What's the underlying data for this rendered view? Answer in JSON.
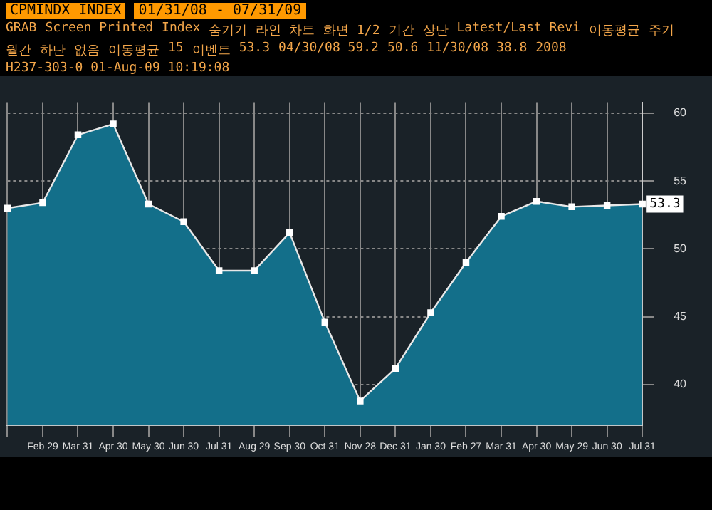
{
  "chart_data": {
    "type": "area",
    "title": "CPMINDX INDEX",
    "subtitle": "01/31/08 - 07/31/09",
    "categories": [
      null,
      "Feb 29",
      "Mar 31",
      "Apr 30",
      "May 30",
      "Jun 30",
      "Jul 31",
      "Aug 29",
      "Sep 30",
      "Oct 31",
      "Nov 28",
      "Dec 31",
      "Jan 30",
      "Feb 27",
      "Mar 31",
      "Apr 30",
      "May 29",
      "Jun 30",
      "Jul 31"
    ],
    "series": [
      {
        "color": "#136f8a",
        "values": [
          53.0,
          53.4,
          58.4,
          59.2,
          53.3,
          52.0,
          48.4,
          48.4,
          51.2,
          44.6,
          38.8,
          41.2,
          45.3,
          49.0,
          52.4,
          53.5,
          53.1,
          53.2,
          53.3
        ],
        "value_labels": [
          null,
          null,
          null,
          null,
          null,
          null,
          null,
          null,
          null,
          null,
          null,
          null,
          null,
          null,
          null,
          null,
          null,
          null,
          "53.3"
        ]
      }
    ],
    "ylim": [
      37,
      60.8
    ],
    "yticks": [
      40,
      45,
      50,
      55,
      60
    ],
    "grid": true,
    "legend": false,
    "marker": "square",
    "line_style": "solid",
    "annotations": [
      "GRAB",
      "Screen Printed",
      "Index",
      "숨기기",
      "라인 차트",
      "화면 1/2",
      "기간",
      "상단",
      "Latest/Last Revi",
      "이동평균",
      "주기",
      "월간",
      "하단",
      "없음",
      "이동평균",
      "15",
      "이벤트",
      "53.3",
      "04/30/08 59.2",
      "50.6",
      "11/30/08 38.8",
      "2008",
      "H237-303-0 01-Aug-09 10:19:08"
    ]
  }
}
